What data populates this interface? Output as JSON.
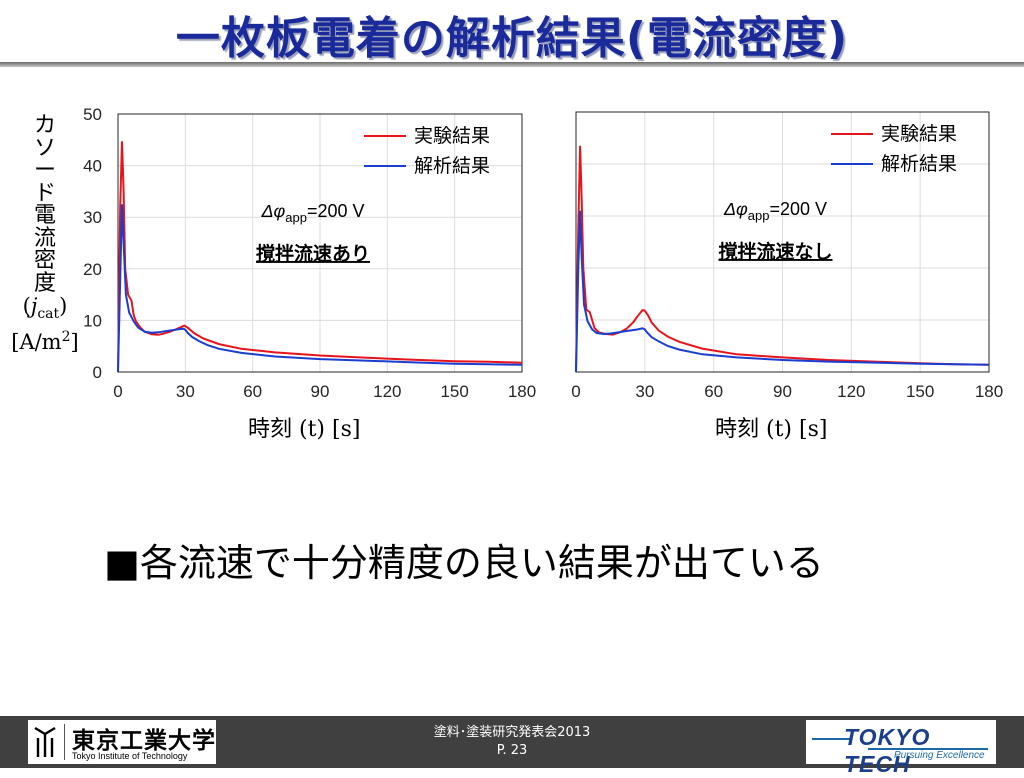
{
  "slide": {
    "title": "一枚板電着の解析結果(電流密度)",
    "bullet_marker": "■",
    "bullet_text": "各流速で十分精度の良い結果が出ている"
  },
  "y_axis_label": {
    "vertical_text": "カソード電流密度",
    "line1_open": "(",
    "line1_var": "j",
    "line1_sub": "cat",
    "line1_close": ")",
    "line2_unit": "[A/m",
    "line2_sup": "2",
    "line2_close": "]"
  },
  "x_axis_label": {
    "text": "時刻 ",
    "var": "(t) [s]"
  },
  "footer": {
    "event": "塗料･塗装研究発表会2013",
    "page": "P. 23",
    "logo_left_jp": "東京工業大学",
    "logo_left_en": "Tokyo Institute of Technology",
    "logo_right_brand": "TOKYO TECH",
    "logo_right_tag": "Pursuing Excellence"
  },
  "colors": {
    "title": "#1a2a9a",
    "experiment": "#e8141c",
    "analysis": "#1a3fd0"
  },
  "chart_data": [
    {
      "type": "line",
      "annotation": "Δφapp=200 V",
      "annotation_parts": {
        "delta": "Δ",
        "phi": "φ",
        "sub": "app",
        "value": "=200 V"
      },
      "condition": "撹拌流速あり",
      "xlim": [
        0,
        180
      ],
      "ylim": [
        0,
        50
      ],
      "xticks": [
        0,
        30,
        60,
        90,
        120,
        150,
        180
      ],
      "yticks": [
        0,
        10,
        20,
        30,
        40,
        50
      ],
      "grid": true,
      "legend_position": "top-right",
      "series": [
        {
          "name": "実験結果",
          "color": "#e8141c",
          "x": [
            0,
            1,
            1.8,
            2.5,
            3.2,
            4.5,
            6,
            7,
            8,
            10,
            12,
            15,
            18,
            20,
            23,
            26,
            28,
            29.5,
            31,
            34,
            38,
            45,
            55,
            70,
            90,
            110,
            130,
            150,
            165,
            180
          ],
          "y": [
            0,
            32,
            44.7,
            35,
            20,
            15,
            13.8,
            11,
            9.8,
            8.6,
            7.8,
            7.3,
            7.2,
            7.4,
            7.8,
            8.3,
            8.7,
            9.0,
            8.6,
            7.5,
            6.5,
            5.4,
            4.5,
            3.8,
            3.2,
            2.8,
            2.4,
            2.1,
            2.0,
            1.8
          ]
        },
        {
          "name": "解析結果",
          "color": "#1a3fd0",
          "x": [
            0,
            1,
            1.8,
            2.5,
            3.5,
            5,
            7,
            9,
            12,
            15,
            18,
            21,
            24,
            27,
            29,
            30,
            31,
            33,
            36,
            40,
            45,
            55,
            70,
            90,
            110,
            130,
            150,
            165,
            180
          ],
          "y": [
            0,
            18,
            32.5,
            25,
            15,
            11.5,
            9.8,
            8.6,
            7.8,
            7.6,
            7.7,
            7.9,
            8.1,
            8.3,
            8.4,
            8.2,
            7.6,
            6.8,
            6.0,
            5.2,
            4.5,
            3.7,
            3.0,
            2.5,
            2.2,
            1.9,
            1.6,
            1.5,
            1.4
          ]
        }
      ]
    },
    {
      "type": "line",
      "annotation": "Δφapp=200 V",
      "annotation_parts": {
        "delta": "Δ",
        "phi": "φ",
        "sub": "app",
        "value": "=200 V"
      },
      "condition": "撹拌流速なし",
      "xlim": [
        0,
        180
      ],
      "ylim": [
        0,
        50
      ],
      "xticks": [
        0,
        30,
        60,
        90,
        120,
        150,
        180
      ],
      "yticks": [
        0,
        10,
        20,
        30,
        40,
        50
      ],
      "grid": true,
      "legend_position": "top-right",
      "series": [
        {
          "name": "実験結果",
          "color": "#e8141c",
          "x": [
            0,
            1,
            1.8,
            2.5,
            3.2,
            4.5,
            6,
            7,
            8,
            10,
            13,
            16,
            19,
            22,
            25,
            27,
            29,
            30,
            31.5,
            33,
            36,
            40,
            45,
            55,
            70,
            90,
            110,
            130,
            150,
            165,
            180
          ],
          "y": [
            0,
            28,
            43.5,
            33,
            20,
            12,
            11.5,
            10,
            8.5,
            7.6,
            7.3,
            7.2,
            7.6,
            8.3,
            9.6,
            10.8,
            11.9,
            11.8,
            10.8,
            9.5,
            8.0,
            6.8,
            5.8,
            4.5,
            3.4,
            2.8,
            2.3,
            2.0,
            1.7,
            1.5,
            1.4
          ]
        },
        {
          "name": "解析結果",
          "color": "#1a3fd0",
          "x": [
            0,
            1,
            1.8,
            2.5,
            3.5,
            5,
            7,
            9,
            12,
            15,
            18,
            21,
            24,
            27,
            29,
            30,
            31,
            33,
            36,
            40,
            45,
            55,
            70,
            90,
            110,
            130,
            150,
            165,
            180
          ],
          "y": [
            0,
            20,
            31,
            22,
            13,
            9.8,
            8.2,
            7.5,
            7.3,
            7.4,
            7.6,
            7.8,
            8.0,
            8.2,
            8.4,
            8.2,
            7.6,
            6.7,
            5.9,
            5.0,
            4.3,
            3.4,
            2.8,
            2.3,
            2.0,
            1.8,
            1.6,
            1.5,
            1.4
          ]
        }
      ]
    }
  ]
}
